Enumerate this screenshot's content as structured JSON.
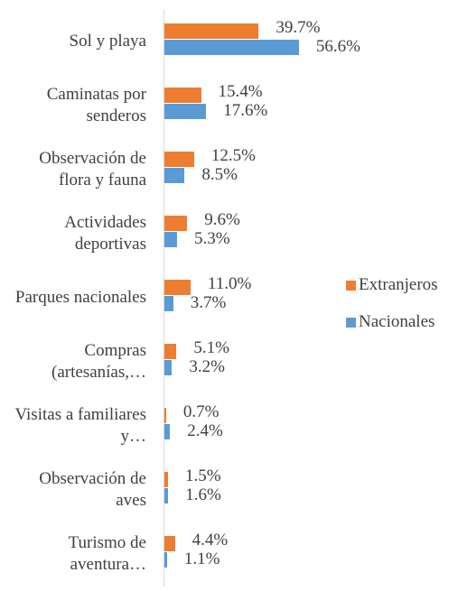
{
  "chart_data": {
    "type": "bar",
    "orientation": "horizontal",
    "categories": [
      "Sol y playa",
      "Caminatas por senderos",
      "Observación de flora y fauna",
      "Actividades deportivas",
      "Parques nacionales",
      "Compras (artesanías,…",
      "Visitas a familiares y…",
      "Observación de aves",
      "Turismo de aventura…"
    ],
    "series": [
      {
        "name": "Extranjeros",
        "color": "#ed7d31",
        "values": [
          39.7,
          15.4,
          12.5,
          9.6,
          11.0,
          5.1,
          0.7,
          1.5,
          4.4
        ],
        "value_labels": [
          "39.7%",
          "15.4%",
          "12.5%",
          "9.6%",
          "11.0%",
          "5.1%",
          "0.7%",
          "1.5%",
          "4.4%"
        ]
      },
      {
        "name": "Nacionales",
        "color": "#5b9bd5",
        "values": [
          56.6,
          17.6,
          8.5,
          5.3,
          3.7,
          3.2,
          2.4,
          1.6,
          1.1
        ],
        "value_labels": [
          "56.6%",
          "17.6%",
          "8.5%",
          "5.3%",
          "3.7%",
          "3.2%",
          "2.4%",
          "1.6%",
          "1.1%"
        ]
      }
    ],
    "legend": "right"
  }
}
